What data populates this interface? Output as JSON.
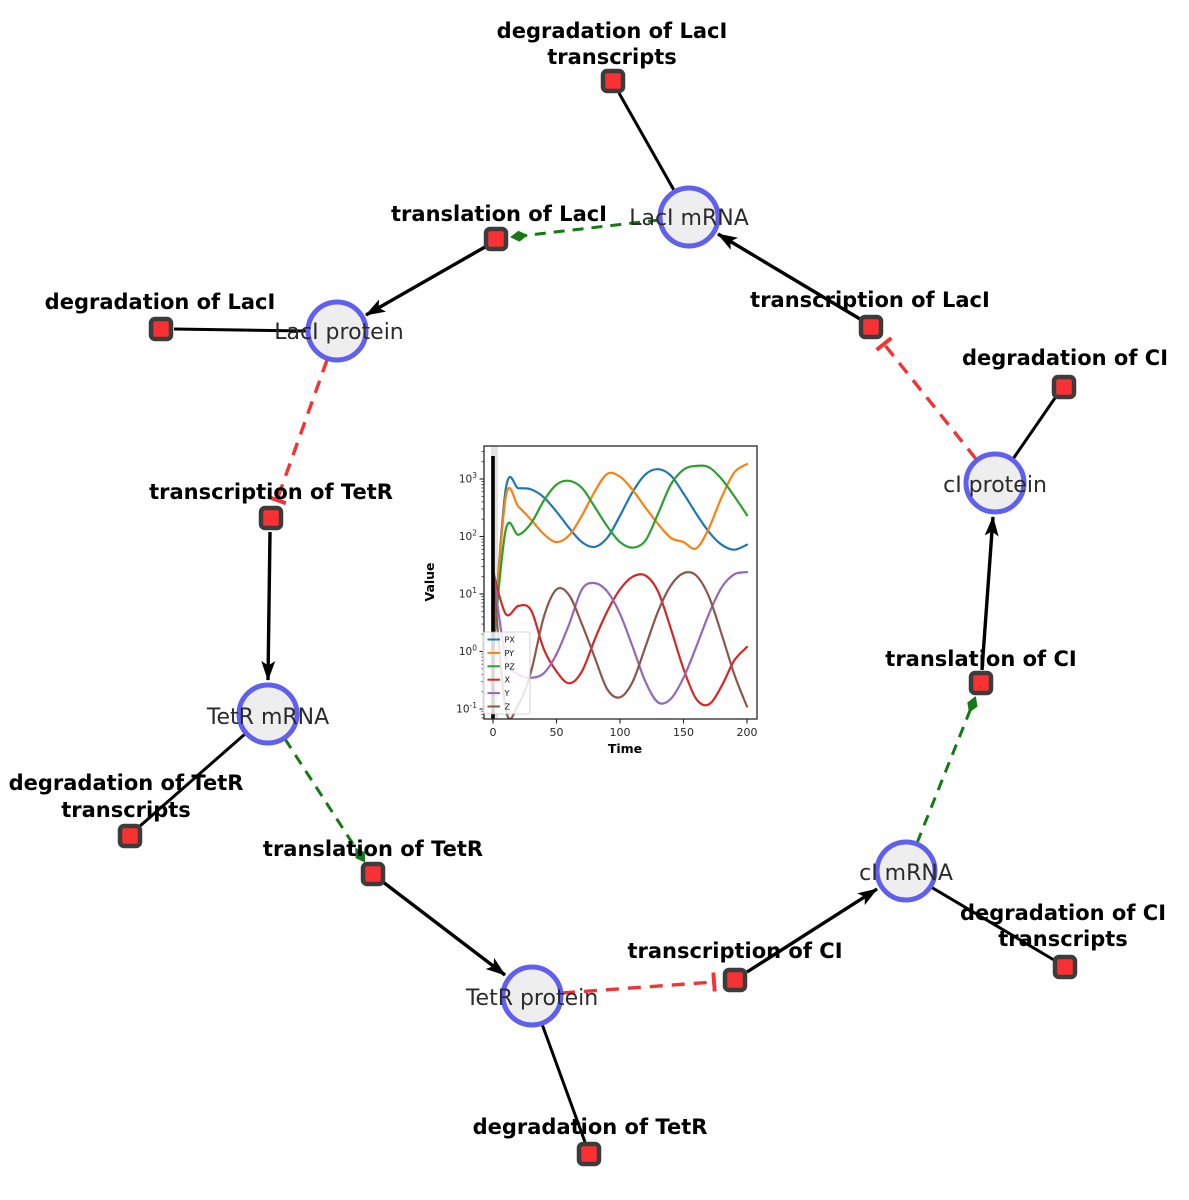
{
  "species": {
    "laci_mrna": {
      "label": "LacI mRNA"
    },
    "laci_protein": {
      "label": "LacI protein"
    },
    "tetr_mrna": {
      "label": "TetR mRNA"
    },
    "tetr_protein": {
      "label": "TetR protein"
    },
    "ci_mrna": {
      "label": "cI mRNA"
    },
    "ci_protein": {
      "label": "cI protein"
    }
  },
  "reactions": {
    "degradation_laci_transcripts": {
      "line1": "degradation of LacI",
      "line2": "transcripts"
    },
    "translation_laci": {
      "label": "translation of LacI"
    },
    "degradation_laci": {
      "label": "degradation of LacI"
    },
    "transcription_laci": {
      "label": "transcription of LacI"
    },
    "degradation_ci": {
      "label": "degradation of CI"
    },
    "transcription_tetr": {
      "label": "transcription of TetR"
    },
    "degradation_tetr_transcripts": {
      "line1": "degradation of TetR",
      "line2": "transcripts"
    },
    "translation_tetr": {
      "label": "translation of TetR"
    },
    "tetr_protein_deg": {
      "label": "degradation of TetR"
    },
    "transcription_ci": {
      "label": "transcription of CI"
    },
    "translation_ci": {
      "label": "translation of CI"
    },
    "degradation_ci_transcripts": {
      "line1": "degradation of CI",
      "line2": "transcripts"
    }
  },
  "edges": [
    {
      "from": "LacI mRNA",
      "to": "degradation of LacI transcripts",
      "type": "consumption"
    },
    {
      "from": "LacI mRNA",
      "to": "translation of LacI",
      "type": "modifier"
    },
    {
      "from": "translation of LacI",
      "to": "LacI protein",
      "type": "production"
    },
    {
      "from": "LacI protein",
      "to": "degradation of LacI",
      "type": "consumption"
    },
    {
      "from": "LacI protein",
      "to": "transcription of TetR",
      "type": "inhibition"
    },
    {
      "from": "transcription of TetR",
      "to": "TetR mRNA",
      "type": "production"
    },
    {
      "from": "TetR mRNA",
      "to": "degradation of TetR transcripts",
      "type": "consumption"
    },
    {
      "from": "TetR mRNA",
      "to": "translation of TetR",
      "type": "modifier"
    },
    {
      "from": "translation of TetR",
      "to": "TetR protein",
      "type": "production"
    },
    {
      "from": "TetR protein",
      "to": "degradation of TetR",
      "type": "consumption"
    },
    {
      "from": "TetR protein",
      "to": "transcription of CI",
      "type": "inhibition"
    },
    {
      "from": "transcription of CI",
      "to": "cI mRNA",
      "type": "production"
    },
    {
      "from": "cI mRNA",
      "to": "degradation of CI transcripts",
      "type": "consumption"
    },
    {
      "from": "cI mRNA",
      "to": "translation of CI",
      "type": "modifier"
    },
    {
      "from": "translation of CI",
      "to": "cI protein",
      "type": "production"
    },
    {
      "from": "cI protein",
      "to": "degradation of CI",
      "type": "consumption"
    },
    {
      "from": "cI protein",
      "to": "transcription of LacI",
      "type": "inhibition"
    },
    {
      "from": "transcription of LacI",
      "to": "LacI mRNA",
      "type": "production"
    }
  ],
  "colors": {
    "species_fill": "#eeeeee",
    "species_stroke": "#5f5ff0",
    "reaction_fill": "#fa3132",
    "reaction_stroke": "#3c3c3c",
    "edge_main": "#000000",
    "edge_modifier": "#157a15",
    "edge_inhibition": "#f23434"
  },
  "chart_data": {
    "type": "line",
    "title": "",
    "xlabel": "Time",
    "ylabel": "Value",
    "x_ticks": [
      0,
      50,
      100,
      150,
      200
    ],
    "y_tick_exponents": [
      -1,
      0,
      1,
      2,
      3
    ],
    "y_scale": "log",
    "xlim": [
      -8,
      208
    ],
    "ylim_log10": [
      -1.17,
      3.57
    ],
    "legend_position": "lower left",
    "event_line_x": 0,
    "x": [
      0,
      10,
      20,
      30,
      40,
      50,
      60,
      70,
      80,
      90,
      100,
      110,
      120,
      130,
      140,
      150,
      160,
      170,
      180,
      190,
      200
    ],
    "series": [
      {
        "name": "PX",
        "color": "#1f77b4",
        "values": [
          1,
          660,
          690,
          660,
          480,
          270,
          140,
          80,
          66,
          95,
          230,
          600,
          1200,
          1480,
          1150,
          560,
          250,
          120,
          72,
          59,
          72
        ]
      },
      {
        "name": "PY",
        "color": "#ff7f0e",
        "values": [
          1,
          480,
          330,
          195,
          110,
          80,
          105,
          230,
          600,
          1230,
          1100,
          640,
          320,
          165,
          95,
          80,
          62,
          140,
          480,
          1300,
          1820
        ]
      },
      {
        "name": "PZ",
        "color": "#2ca02c",
        "values": [
          1,
          130,
          107,
          170,
          420,
          800,
          930,
          700,
          330,
          150,
          80,
          64,
          85,
          250,
          800,
          1450,
          1690,
          1600,
          1000,
          500,
          235
        ]
      },
      {
        "name": "X",
        "color": "#d62728",
        "values": [
          25,
          4.5,
          6.2,
          5.2,
          1.1,
          0.45,
          0.28,
          0.45,
          1.6,
          5,
          12,
          20,
          21,
          11,
          2.5,
          0.5,
          0.15,
          0.12,
          0.25,
          0.7,
          1.2
        ]
      },
      {
        "name": "Y",
        "color": "#9467bd",
        "values": [
          25,
          0.8,
          0.4,
          0.35,
          0.42,
          0.9,
          3,
          12,
          15.5,
          11,
          4.5,
          1.2,
          0.3,
          0.13,
          0.15,
          0.35,
          1.2,
          4.5,
          13,
          22,
          24
        ]
      },
      {
        "name": "Z",
        "color": "#8c564b",
        "values": [
          25,
          0.1,
          0.12,
          0.45,
          4,
          12,
          9.5,
          3,
          0.8,
          0.22,
          0.16,
          0.3,
          1.2,
          5,
          14,
          23,
          21,
          9,
          2,
          0.4,
          0.11
        ]
      }
    ]
  }
}
